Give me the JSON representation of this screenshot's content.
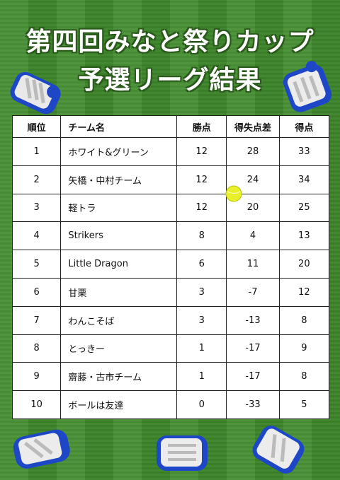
{
  "title_line1": "第四回みなと祭りカップ",
  "title_line2": "予選リーグ結果",
  "table": {
    "headers": [
      "順位",
      "チーム名",
      "勝点",
      "得失点差",
      "得点"
    ],
    "rows": [
      {
        "rank": "1",
        "team": "ホワイト&グリーン",
        "points": "12",
        "diff": "28",
        "goals": "33"
      },
      {
        "rank": "2",
        "team": "矢橋・中村チーム",
        "points": "12",
        "diff": "24",
        "goals": "34"
      },
      {
        "rank": "3",
        "team": "軽トラ",
        "points": "12",
        "diff": "20",
        "goals": "25"
      },
      {
        "rank": "4",
        "team": "Strikers",
        "points": "8",
        "diff": "4",
        "goals": "13"
      },
      {
        "rank": "5",
        "team": "Little Dragon",
        "points": "6",
        "diff": "11",
        "goals": "20"
      },
      {
        "rank": "6",
        "team": "甘栗",
        "points": "3",
        "diff": "-7",
        "goals": "12"
      },
      {
        "rank": "7",
        "team": "わんこそば",
        "points": "3",
        "diff": "-13",
        "goals": "8"
      },
      {
        "rank": "8",
        "team": "とっきー",
        "points": "1",
        "diff": "-17",
        "goals": "9"
      },
      {
        "rank": "9",
        "team": "齋藤・古市チーム",
        "points": "1",
        "diff": "-17",
        "goals": "8"
      },
      {
        "rank": "10",
        "team": "ボールは友達",
        "points": "0",
        "diff": "-33",
        "goals": "5"
      }
    ]
  },
  "colors": {
    "field_green": "#3f8a2c",
    "shoe_blue": "#1e47c8",
    "ball_yellow": "#e8f02a"
  }
}
